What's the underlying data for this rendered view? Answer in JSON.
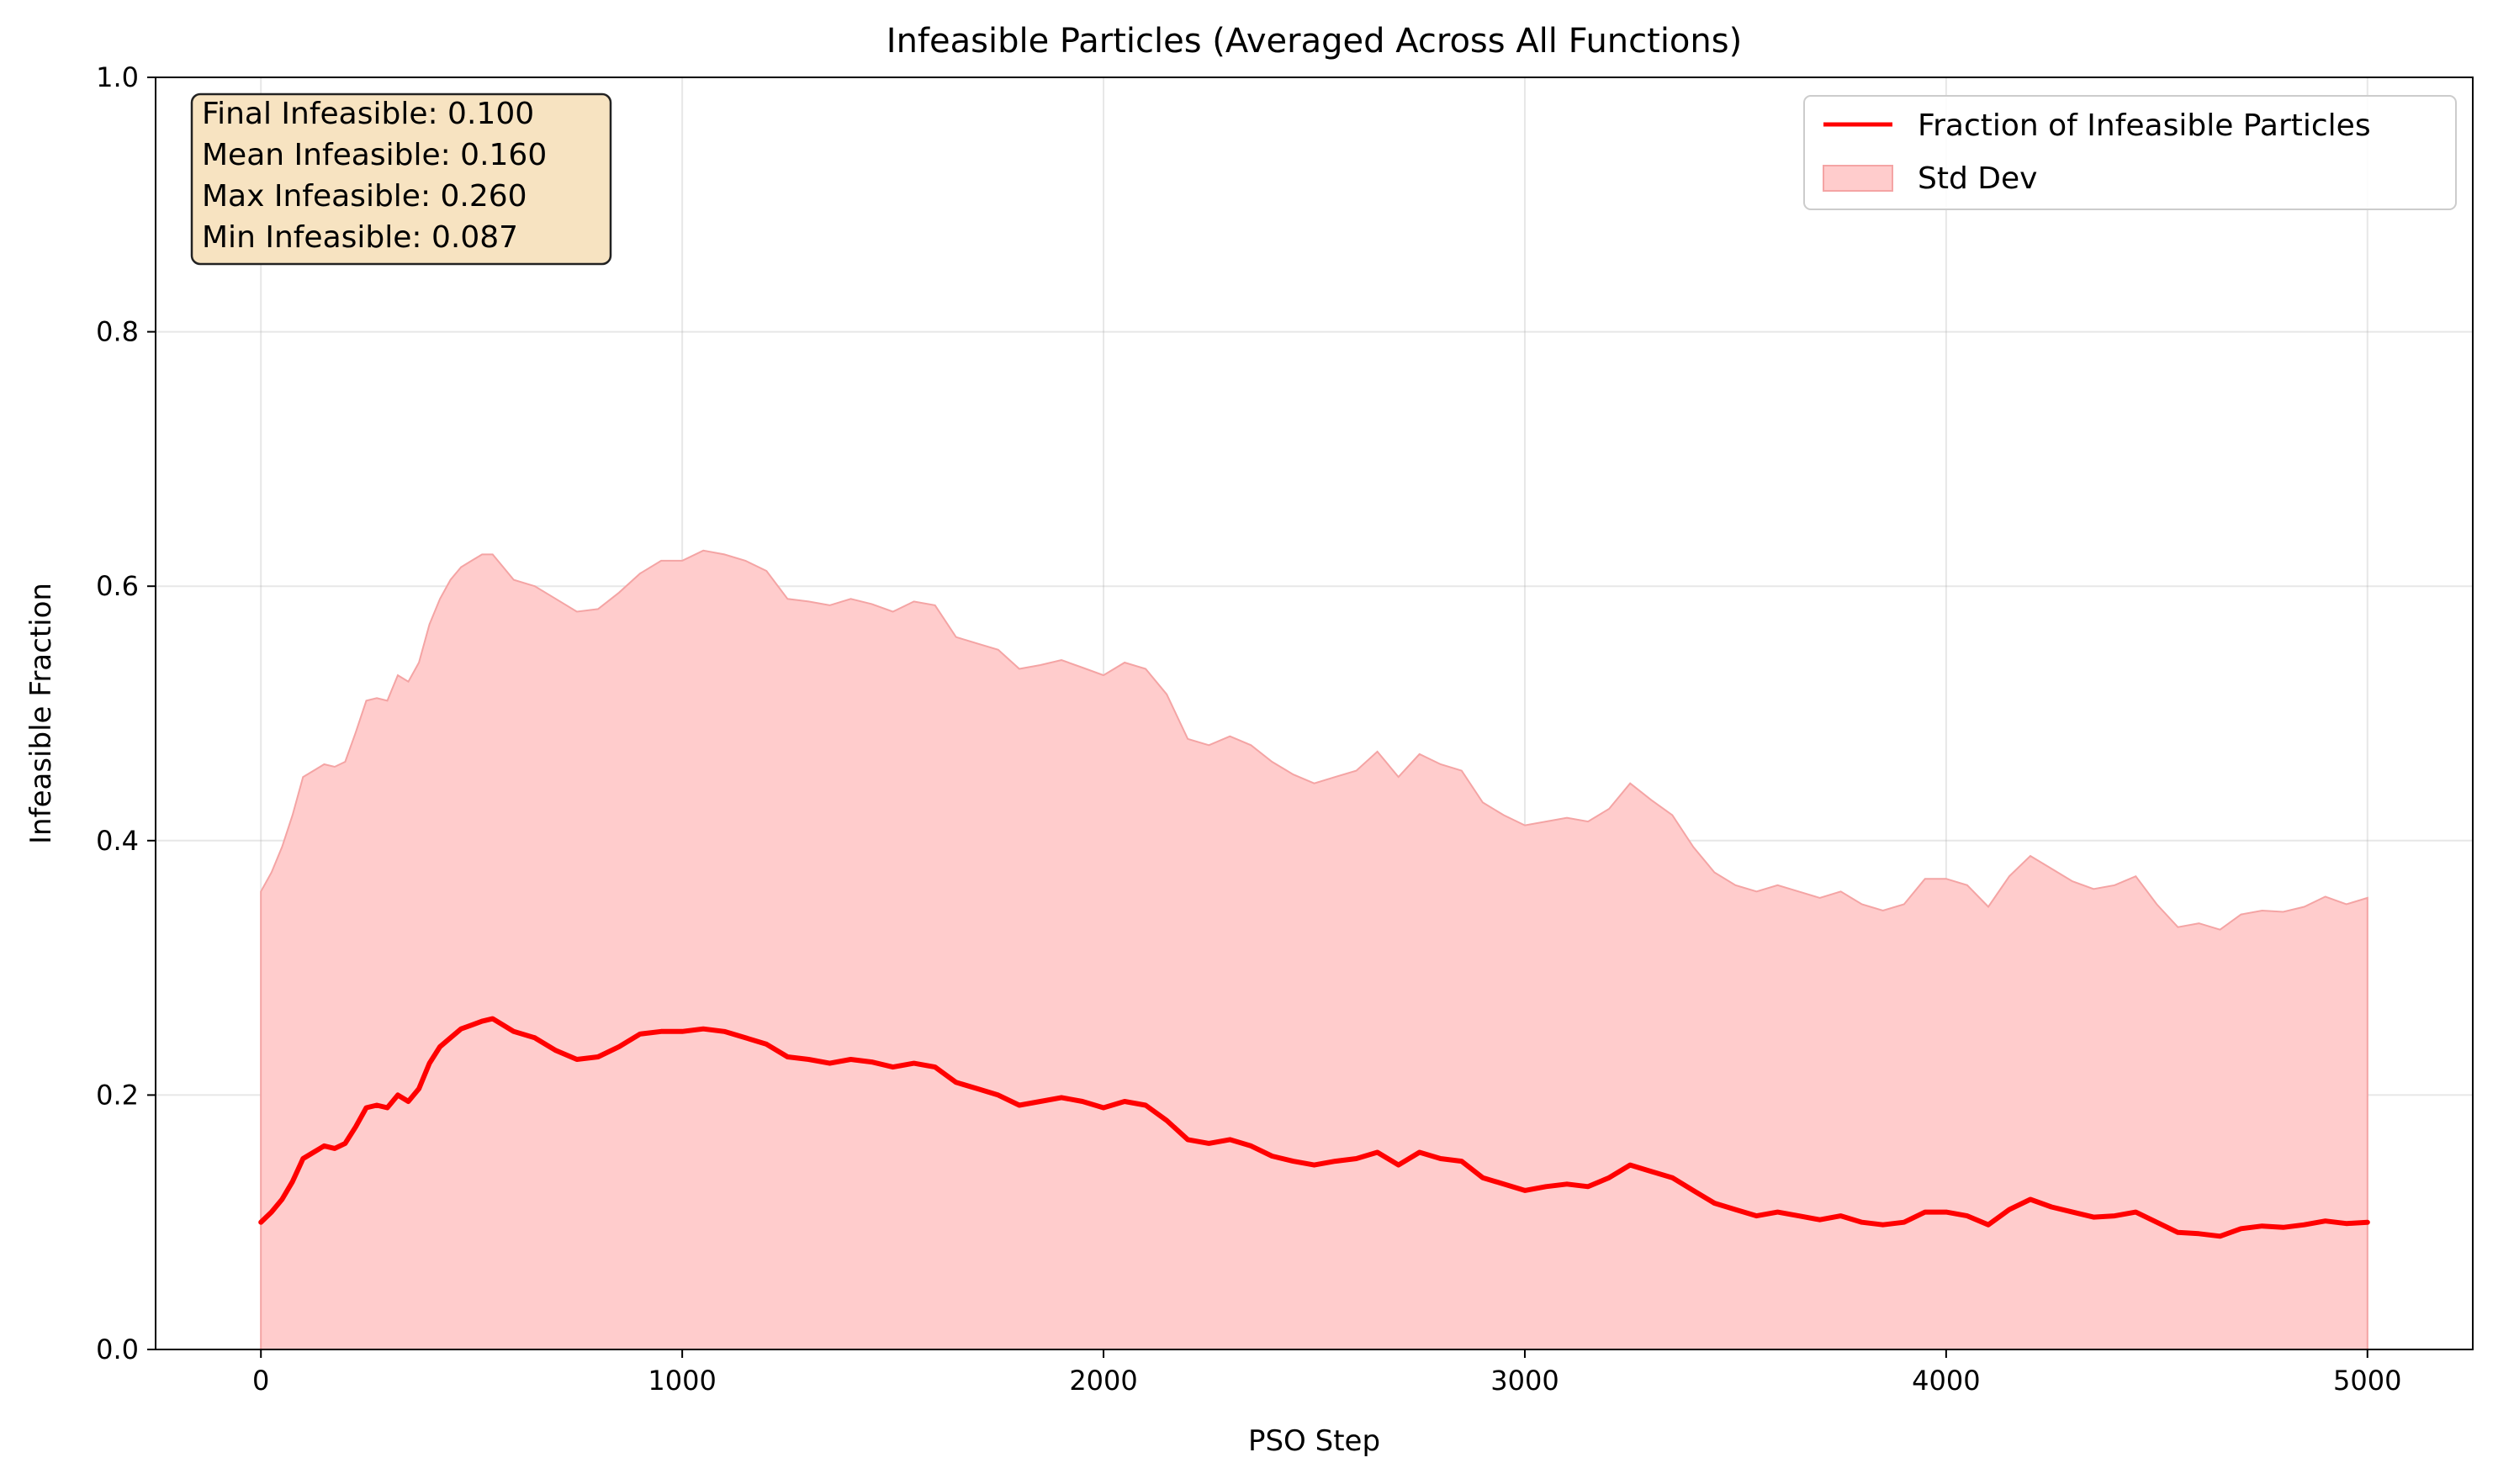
{
  "chart_data": {
    "type": "line",
    "title": "Infeasible Particles (Averaged Across All Functions)",
    "xlabel": "PSO Step",
    "ylabel": "Infeasible Fraction",
    "xlim": [
      -250,
      5250
    ],
    "ylim": [
      0.0,
      1.0
    ],
    "x_ticks": [
      0,
      1000,
      2000,
      3000,
      4000,
      5000
    ],
    "y_ticks": [
      0.0,
      0.2,
      0.4,
      0.6,
      0.8,
      1.0
    ],
    "x_tick_labels": [
      "0",
      "1000",
      "2000",
      "3000",
      "4000",
      "5000"
    ],
    "y_tick_labels": [
      "0.0",
      "0.2",
      "0.4",
      "0.6",
      "0.8",
      "1.0"
    ],
    "grid": true,
    "legend_position": "top-right",
    "legend": {
      "line_label": "Fraction of Infeasible Particles",
      "band_label": "Std Dev"
    },
    "colors": {
      "line": "#ff0000",
      "band_fill": "#ffcccc",
      "band_edge": "#f4a4a4",
      "stats_box_fill": "#f7e3c1",
      "stats_box_edge": "#222222"
    },
    "stats_box": {
      "position": "top-left",
      "lines": [
        "Final Infeasible: 0.100",
        "Mean Infeasible: 0.160",
        "Max Infeasible: 0.260",
        "Min Infeasible: 0.087"
      ]
    },
    "series": [
      {
        "name": "Fraction of Infeasible Particles",
        "x": [
          0,
          25,
          50,
          75,
          100,
          125,
          150,
          175,
          200,
          225,
          250,
          275,
          300,
          325,
          350,
          375,
          400,
          425,
          450,
          475,
          500,
          525,
          550,
          575,
          600,
          650,
          700,
          750,
          800,
          850,
          900,
          950,
          1000,
          1050,
          1100,
          1150,
          1200,
          1250,
          1300,
          1350,
          1400,
          1450,
          1500,
          1550,
          1600,
          1650,
          1700,
          1750,
          1800,
          1850,
          1900,
          1950,
          2000,
          2050,
          2100,
          2150,
          2200,
          2250,
          2300,
          2350,
          2400,
          2450,
          2500,
          2550,
          2600,
          2650,
          2700,
          2750,
          2800,
          2850,
          2900,
          2950,
          3000,
          3050,
          3100,
          3150,
          3200,
          3250,
          3300,
          3350,
          3400,
          3450,
          3500,
          3550,
          3600,
          3650,
          3700,
          3750,
          3800,
          3850,
          3900,
          3950,
          4000,
          4050,
          4100,
          4150,
          4200,
          4250,
          4300,
          4350,
          4400,
          4450,
          4500,
          4550,
          4600,
          4650,
          4700,
          4750,
          4800,
          4850,
          4900,
          4950,
          5000
        ],
        "y": [
          0.1,
          0.108,
          0.118,
          0.132,
          0.15,
          0.155,
          0.16,
          0.158,
          0.162,
          0.175,
          0.19,
          0.192,
          0.19,
          0.2,
          0.195,
          0.205,
          0.225,
          0.238,
          0.245,
          0.252,
          0.255,
          0.258,
          0.26,
          0.255,
          0.25,
          0.245,
          0.235,
          0.228,
          0.23,
          0.238,
          0.248,
          0.25,
          0.25,
          0.252,
          0.25,
          0.245,
          0.24,
          0.23,
          0.228,
          0.225,
          0.228,
          0.226,
          0.222,
          0.225,
          0.222,
          0.21,
          0.205,
          0.2,
          0.192,
          0.195,
          0.198,
          0.195,
          0.19,
          0.195,
          0.192,
          0.18,
          0.165,
          0.162,
          0.165,
          0.16,
          0.152,
          0.148,
          0.145,
          0.148,
          0.15,
          0.155,
          0.145,
          0.155,
          0.15,
          0.148,
          0.135,
          0.13,
          0.125,
          0.128,
          0.13,
          0.128,
          0.135,
          0.145,
          0.14,
          0.135,
          0.125,
          0.115,
          0.11,
          0.105,
          0.108,
          0.105,
          0.102,
          0.105,
          0.1,
          0.098,
          0.1,
          0.108,
          0.108,
          0.105,
          0.098,
          0.11,
          0.118,
          0.112,
          0.108,
          0.104,
          0.105,
          0.108,
          0.1,
          0.092,
          0.091,
          0.089,
          0.095,
          0.097,
          0.096,
          0.098,
          0.101,
          0.099,
          0.1
        ]
      },
      {
        "name": "Std Dev",
        "x": [
          0,
          25,
          50,
          75,
          100,
          125,
          150,
          175,
          200,
          225,
          250,
          275,
          300,
          325,
          350,
          375,
          400,
          425,
          450,
          475,
          500,
          525,
          550,
          575,
          600,
          650,
          700,
          750,
          800,
          850,
          900,
          950,
          1000,
          1050,
          1100,
          1150,
          1200,
          1250,
          1300,
          1350,
          1400,
          1450,
          1500,
          1550,
          1600,
          1650,
          1700,
          1750,
          1800,
          1850,
          1900,
          1950,
          2000,
          2050,
          2100,
          2150,
          2200,
          2250,
          2300,
          2350,
          2400,
          2450,
          2500,
          2550,
          2600,
          2650,
          2700,
          2750,
          2800,
          2850,
          2900,
          2950,
          3000,
          3050,
          3100,
          3150,
          3200,
          3250,
          3300,
          3350,
          3400,
          3450,
          3500,
          3550,
          3600,
          3650,
          3700,
          3750,
          3800,
          3850,
          3900,
          3950,
          4000,
          4050,
          4100,
          4150,
          4200,
          4250,
          4300,
          4350,
          4400,
          4450,
          4500,
          4550,
          4600,
          4650,
          4700,
          4750,
          4800,
          4850,
          4900,
          4950,
          5000
        ],
        "lower": [
          0,
          0,
          0,
          0,
          0,
          0,
          0,
          0,
          0,
          0,
          0,
          0,
          0,
          0,
          0,
          0,
          0,
          0,
          0,
          0,
          0,
          0,
          0,
          0,
          0,
          0,
          0,
          0,
          0,
          0,
          0,
          0,
          0,
          0,
          0,
          0,
          0,
          0,
          0,
          0,
          0,
          0,
          0,
          0,
          0,
          0,
          0,
          0,
          0,
          0,
          0,
          0,
          0,
          0,
          0,
          0,
          0,
          0,
          0,
          0,
          0,
          0,
          0,
          0,
          0,
          0,
          0,
          0,
          0,
          0,
          0,
          0,
          0,
          0,
          0,
          0,
          0,
          0,
          0,
          0,
          0,
          0,
          0,
          0,
          0,
          0,
          0,
          0,
          0,
          0,
          0,
          0,
          0,
          0,
          0,
          0,
          0,
          0,
          0,
          0,
          0,
          0,
          0,
          0,
          0,
          0,
          0,
          0,
          0,
          0,
          0,
          0,
          0
        ],
        "upper": [
          0.36,
          0.375,
          0.395,
          0.42,
          0.45,
          0.455,
          0.46,
          0.458,
          0.462,
          0.485,
          0.51,
          0.512,
          0.51,
          0.53,
          0.525,
          0.54,
          0.57,
          0.59,
          0.605,
          0.615,
          0.62,
          0.625,
          0.625,
          0.615,
          0.605,
          0.6,
          0.59,
          0.58,
          0.582,
          0.595,
          0.61,
          0.62,
          0.62,
          0.628,
          0.625,
          0.62,
          0.612,
          0.59,
          0.588,
          0.585,
          0.59,
          0.586,
          0.58,
          0.588,
          0.585,
          0.56,
          0.555,
          0.55,
          0.535,
          0.538,
          0.542,
          0.536,
          0.53,
          0.54,
          0.535,
          0.515,
          0.48,
          0.475,
          0.482,
          0.475,
          0.462,
          0.452,
          0.445,
          0.45,
          0.455,
          0.47,
          0.45,
          0.468,
          0.46,
          0.455,
          0.43,
          0.42,
          0.412,
          0.415,
          0.418,
          0.415,
          0.425,
          0.445,
          0.432,
          0.42,
          0.395,
          0.375,
          0.365,
          0.36,
          0.365,
          0.36,
          0.355,
          0.36,
          0.35,
          0.345,
          0.35,
          0.37,
          0.37,
          0.365,
          0.348,
          0.372,
          0.388,
          0.378,
          0.368,
          0.362,
          0.365,
          0.372,
          0.35,
          0.332,
          0.335,
          0.33,
          0.342,
          0.345,
          0.344,
          0.348,
          0.356,
          0.35,
          0.355
        ]
      }
    ]
  }
}
